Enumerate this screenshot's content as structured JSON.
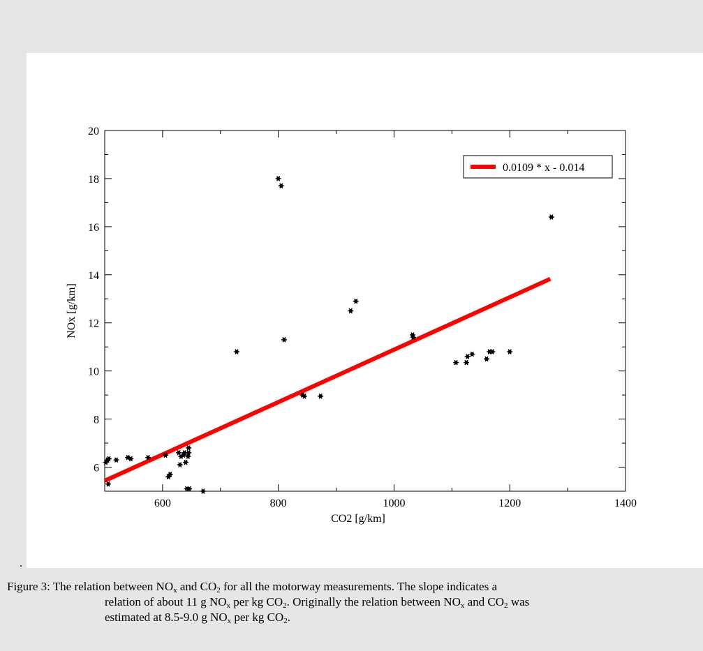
{
  "chart_data": {
    "type": "scatter",
    "xlabel": "CO2 [g/km]",
    "ylabel": "NOx [g/km]",
    "xlim": [
      500,
      1400
    ],
    "ylim": [
      5,
      20
    ],
    "xticks": [
      600,
      800,
      1000,
      1200,
      1400
    ],
    "yticks": [
      6,
      8,
      10,
      12,
      14,
      16,
      18,
      20
    ],
    "grid": false,
    "legend_position": "top-right",
    "legend": [
      "0.0109 * x - 0.014"
    ],
    "points": [
      {
        "x": 502,
        "y": 6.2
      },
      {
        "x": 505,
        "y": 6.3
      },
      {
        "x": 507,
        "y": 6.35
      },
      {
        "x": 506,
        "y": 5.3
      },
      {
        "x": 520,
        "y": 6.3
      },
      {
        "x": 540,
        "y": 6.4
      },
      {
        "x": 545,
        "y": 6.35
      },
      {
        "x": 575,
        "y": 6.4
      },
      {
        "x": 605,
        "y": 6.5
      },
      {
        "x": 610,
        "y": 5.6
      },
      {
        "x": 613,
        "y": 5.7
      },
      {
        "x": 628,
        "y": 6.6
      },
      {
        "x": 630,
        "y": 6.1
      },
      {
        "x": 632,
        "y": 6.45
      },
      {
        "x": 636,
        "y": 6.5
      },
      {
        "x": 638,
        "y": 6.6
      },
      {
        "x": 640,
        "y": 6.2
      },
      {
        "x": 642,
        "y": 5.1
      },
      {
        "x": 644,
        "y": 6.45
      },
      {
        "x": 645,
        "y": 6.6
      },
      {
        "x": 645,
        "y": 6.8
      },
      {
        "x": 646,
        "y": 5.1
      },
      {
        "x": 670,
        "y": 5.0
      },
      {
        "x": 728,
        "y": 10.8
      },
      {
        "x": 800,
        "y": 18.0
      },
      {
        "x": 805,
        "y": 17.7
      },
      {
        "x": 810,
        "y": 11.3
      },
      {
        "x": 842,
        "y": 9.0
      },
      {
        "x": 845,
        "y": 8.95
      },
      {
        "x": 873,
        "y": 8.95
      },
      {
        "x": 925,
        "y": 12.5
      },
      {
        "x": 934,
        "y": 12.9
      },
      {
        "x": 1032,
        "y": 11.5
      },
      {
        "x": 1033,
        "y": 11.4
      },
      {
        "x": 1107,
        "y": 10.35
      },
      {
        "x": 1125,
        "y": 10.35
      },
      {
        "x": 1127,
        "y": 10.6
      },
      {
        "x": 1135,
        "y": 10.7
      },
      {
        "x": 1160,
        "y": 10.5
      },
      {
        "x": 1165,
        "y": 10.8
      },
      {
        "x": 1170,
        "y": 10.8
      },
      {
        "x": 1200,
        "y": 10.8
      },
      {
        "x": 1272,
        "y": 16.4
      }
    ],
    "fit_line": {
      "name": "0.0109 * x - 0.014",
      "slope": 0.0109,
      "intercept": -0.014,
      "x_start": 500,
      "x_end": 1270,
      "color": "#ff0000"
    }
  },
  "caption": {
    "line1_pre": "Figure 3: The relation between NO",
    "line1_mid": " and CO",
    "line1_post": " for all the motorway measurements. The slope indicates a",
    "line2_pre": "relation of about 11 g NO",
    "line2_mid": " per kg CO",
    "line2_mid2": ". Originally the relation between NO",
    "line2_mid3": " and CO",
    "line2_post": " was",
    "line3_pre": "estimated at 8.5-9.0 g NO",
    "line3_mid": " per kg CO",
    "line3_post": ".",
    "sub_x": "x",
    "sub_2": "2"
  },
  "stray_mark": "."
}
